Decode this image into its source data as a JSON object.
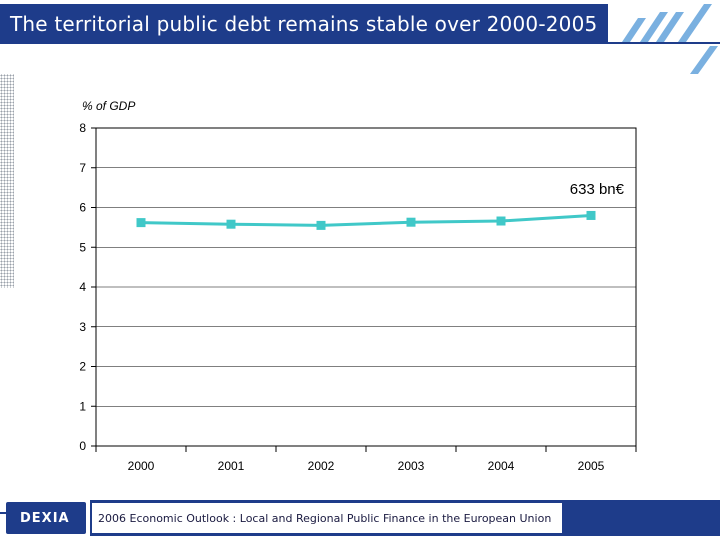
{
  "header": {
    "title": "The territorial public debt remains stable over 2000-2005"
  },
  "footer": {
    "logo_text": "DEXIA",
    "source": "2006 Economic Outlook : Local and Regional Public Finance in the European Union"
  },
  "colors": {
    "brand": "#1e3c8a",
    "series": "#40c8c8"
  },
  "chart_data": {
    "type": "line",
    "title": "",
    "ylabel": "% of GDP",
    "xlabel": "",
    "categories": [
      "2000",
      "2001",
      "2002",
      "2003",
      "2004",
      "2005"
    ],
    "series": [
      {
        "name": "Territorial public debt",
        "values": [
          5.62,
          5.58,
          5.55,
          5.63,
          5.66,
          5.8
        ]
      }
    ],
    "ylim": [
      0,
      8
    ],
    "yticks": [
      "0",
      "1",
      "2",
      "3",
      "4",
      "5",
      "6",
      "7",
      "8"
    ],
    "grid": "horizontal",
    "annotation": "633 bn€",
    "legend": "none"
  }
}
